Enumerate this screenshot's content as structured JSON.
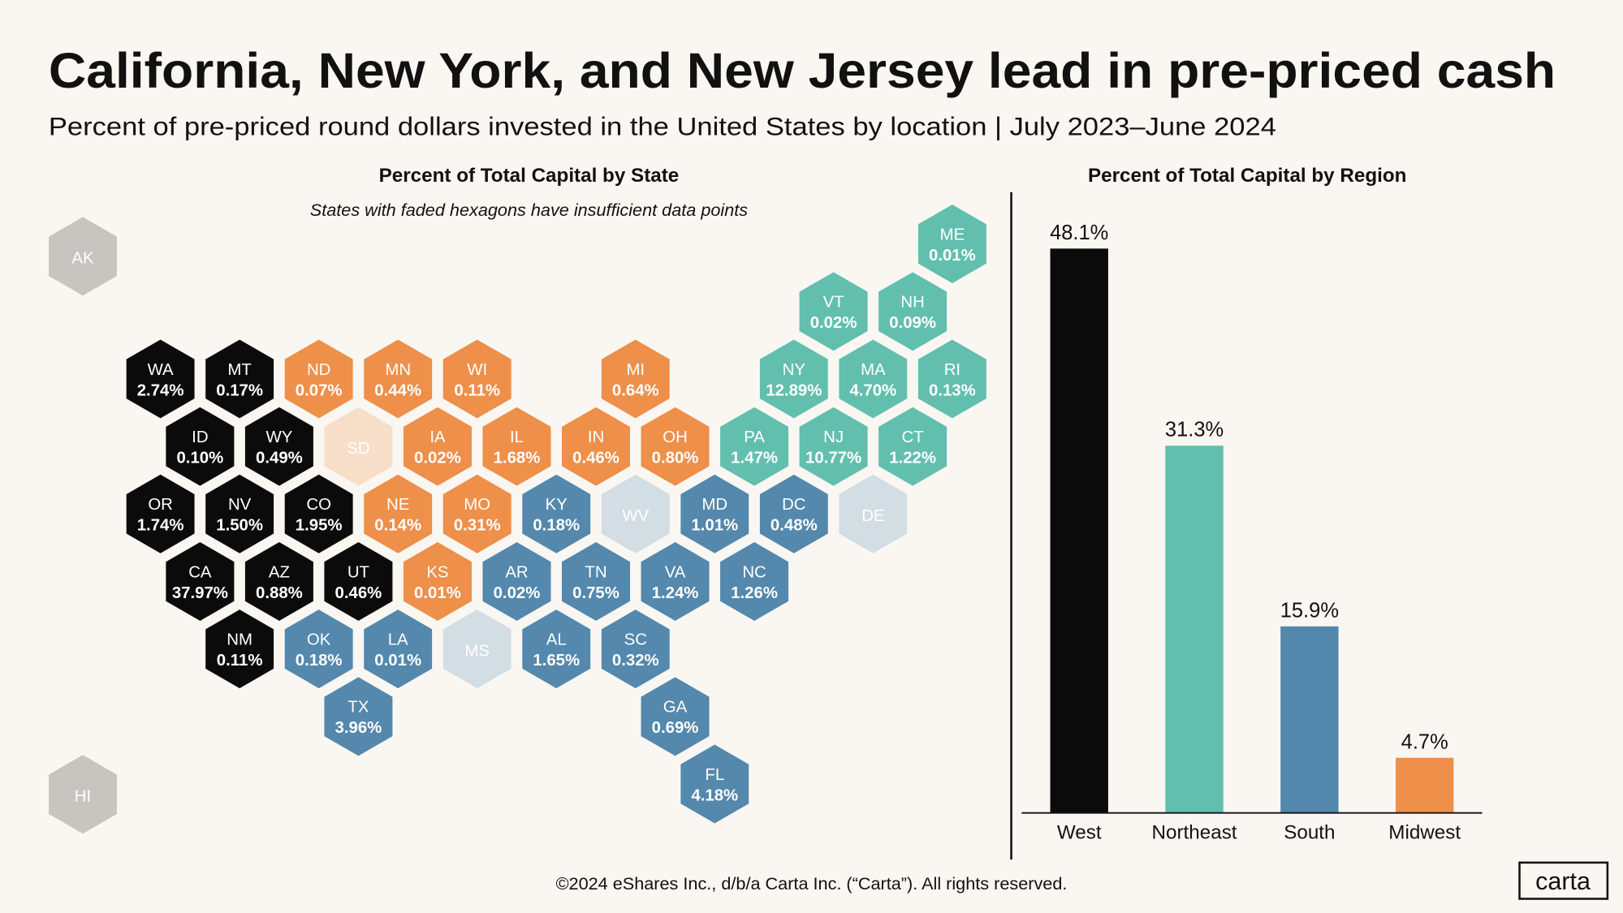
{
  "title": "California, New York, and New Jersey lead in pre-priced cash",
  "subtitle": "Percent of pre-priced round dollars invested in the United States by location | July 2023–June 2024",
  "footer": "©2024 eShares Inc., d/b/a Carta Inc. (“Carta”). All rights reserved.",
  "logo": "carta",
  "chart_data": [
    {
      "type": "hexmap",
      "title": "Percent of Total Capital by State",
      "note": "States with faded hexagons have insufficient data points",
      "states": [
        "AK",
        "HI",
        "ME",
        "VT",
        "NH",
        "WA",
        "MT",
        "ND",
        "MN",
        "WI",
        "MI",
        "NY",
        "MA",
        "RI",
        "ID",
        "WY",
        "SD",
        "IA",
        "IL",
        "IN",
        "OH",
        "PA",
        "NJ",
        "CT",
        "OR",
        "NV",
        "CO",
        "NE",
        "MO",
        "KY",
        "WV",
        "MD",
        "DC",
        "DE",
        "CA",
        "AZ",
        "UT",
        "KS",
        "AR",
        "TN",
        "VA",
        "NC",
        "NM",
        "OK",
        "LA",
        "MS",
        "AL",
        "SC",
        "TX",
        "GA",
        "FL"
      ],
      "values": [
        null,
        null,
        0.01,
        0.02,
        0.09,
        2.74,
        0.17,
        0.07,
        0.44,
        0.11,
        0.64,
        12.89,
        4.7,
        0.13,
        0.1,
        0.49,
        null,
        0.02,
        1.68,
        0.46,
        0.8,
        1.47,
        10.77,
        1.22,
        1.74,
        1.5,
        1.95,
        0.14,
        0.31,
        0.18,
        null,
        1.01,
        0.48,
        null,
        37.97,
        0.88,
        0.46,
        0.01,
        0.02,
        0.75,
        1.24,
        1.26,
        0.11,
        0.18,
        0.01,
        null,
        1.65,
        0.32,
        3.96,
        0.69,
        4.18
      ],
      "value_labels": [
        null,
        null,
        "0.01%",
        "0.02%",
        "0.09%",
        "2.74%",
        "0.17%",
        "0.07%",
        "0.44%",
        "0.11%",
        "0.64%",
        "12.89%",
        "4.70%",
        "0.13%",
        "0.10%",
        "0.49%",
        null,
        "0.02%",
        "1.68%",
        "0.46%",
        "0.80%",
        "1.47%",
        "10.77%",
        "1.22%",
        "1.74%",
        "1.50%",
        "1.95%",
        "0.14%",
        "0.31%",
        "0.18%",
        null,
        "1.01%",
        "0.48%",
        null,
        "37.97%",
        "0.88%",
        "0.46%",
        "0.01%",
        "0.02%",
        "0.75%",
        "1.24%",
        "1.26%",
        "0.11%",
        "0.18%",
        "0.01%",
        null,
        "1.65%",
        "0.32%",
        "3.96%",
        "0.69%",
        "4.18%"
      ],
      "colors": [
        "#c8c5c1",
        "#c8c5c1",
        "#62bfae",
        "#62bfae",
        "#62bfae",
        "#0b0b0b",
        "#0b0b0b",
        "#ee8f4a",
        "#ee8f4a",
        "#ee8f4a",
        "#ee8f4a",
        "#62bfae",
        "#62bfae",
        "#62bfae",
        "#0b0b0b",
        "#0b0b0b",
        "#f7dec9",
        "#ee8f4a",
        "#ee8f4a",
        "#ee8f4a",
        "#ee8f4a",
        "#62bfae",
        "#62bfae",
        "#62bfae",
        "#0b0b0b",
        "#0b0b0b",
        "#0b0b0b",
        "#ee8f4a",
        "#ee8f4a",
        "#5488ad",
        "#d3dde4",
        "#5488ad",
        "#5488ad",
        "#d3dde4",
        "#0b0b0b",
        "#0b0b0b",
        "#0b0b0b",
        "#ee8f4a",
        "#5488ad",
        "#5488ad",
        "#5488ad",
        "#5488ad",
        "#0b0b0b",
        "#5488ad",
        "#5488ad",
        "#d3dde4",
        "#5488ad",
        "#5488ad",
        "#5488ad",
        "#5488ad",
        "#5488ad"
      ]
    },
    {
      "type": "bar",
      "title": "Percent of Total Capital by Region",
      "categories": [
        "West",
        "Northeast",
        "South",
        "Midwest"
      ],
      "values": [
        48.1,
        31.3,
        15.9,
        4.7
      ],
      "value_labels": [
        "48.1%",
        "31.3%",
        "15.9%",
        "4.7%"
      ],
      "colors": [
        "#0b0b0b",
        "#62bfae",
        "#5488ad",
        "#ee8f4a"
      ],
      "ylim": [
        0,
        50
      ]
    }
  ]
}
